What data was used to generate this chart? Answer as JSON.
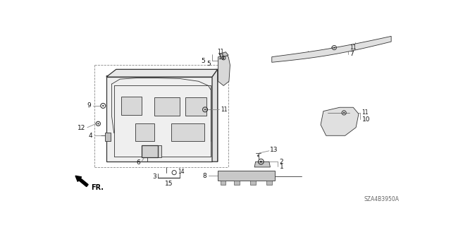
{
  "bg_color": "#ffffff",
  "fig_width": 6.4,
  "fig_height": 3.19,
  "dpi": 100,
  "diagram_code": "SZA4B3950A",
  "lc": "#333333",
  "lc_light": "#888888",
  "gray_fill": "#d0d0d0",
  "gray_dark": "#555555"
}
